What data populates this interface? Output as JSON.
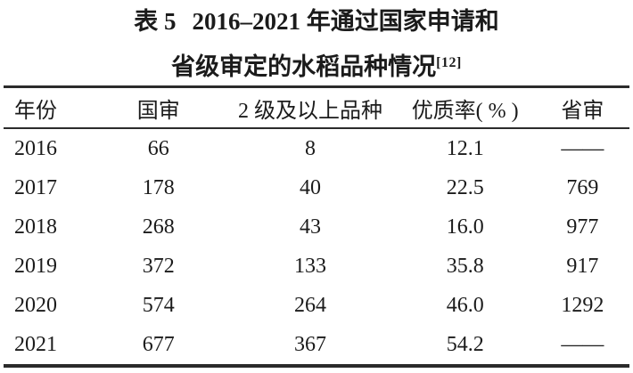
{
  "page": {
    "background": "#ffffff",
    "text_color": "#1b1b1b",
    "rule_color": "#2b2b2b"
  },
  "title": {
    "label": "表 5",
    "line1_rest": "2016–2021 年通过国家申请和",
    "line2": "省级审定的水稻品种情况",
    "reference": "[12]"
  },
  "table": {
    "columns": [
      "年份",
      "国审",
      "2 级及以上品种",
      "优质率( % )",
      "省审"
    ],
    "rows": [
      [
        "2016",
        "66",
        "8",
        "12.1",
        "——"
      ],
      [
        "2017",
        "178",
        "40",
        "22.5",
        "769"
      ],
      [
        "2018",
        "268",
        "43",
        "16.0",
        "977"
      ],
      [
        "2019",
        "372",
        "133",
        "35.8",
        "917"
      ],
      [
        "2020",
        "574",
        "264",
        "46.0",
        "1292"
      ],
      [
        "2021",
        "677",
        "367",
        "54.2",
        "——"
      ]
    ]
  }
}
